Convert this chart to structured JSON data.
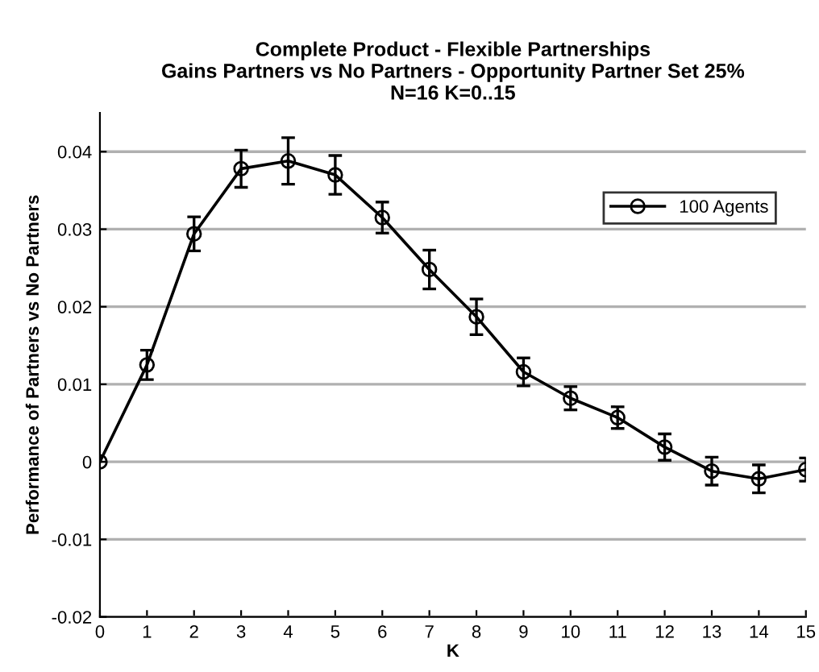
{
  "chart_data": {
    "type": "line",
    "title": "Complete Product - Flexible Partnerships\nGains Partners vs No Partners - Opportunity Partner Set 25%\nN=16 K=0..15",
    "xlabel": "K",
    "ylabel": "Performance of Partners vs No Partners",
    "x": [
      0,
      1,
      2,
      3,
      4,
      5,
      6,
      7,
      8,
      9,
      10,
      11,
      12,
      13,
      14,
      15
    ],
    "series": [
      {
        "name": "100 Agents",
        "color": "#000000",
        "values": [
          0,
          0.0125,
          0.0294,
          0.0378,
          0.0388,
          0.037,
          0.0315,
          0.0248,
          0.0187,
          0.0116,
          0.0082,
          0.0057,
          0.0019,
          -0.0012,
          -0.0022,
          -0.001
        ],
        "errors": [
          null,
          0.0019,
          0.0022,
          0.0024,
          0.003,
          0.0025,
          0.002,
          0.0025,
          0.0023,
          0.0018,
          0.0015,
          0.0014,
          0.0017,
          0.0018,
          0.0018,
          0.0015
        ]
      }
    ],
    "xlim": [
      0,
      15
    ],
    "xticks": [
      0,
      1,
      2,
      3,
      4,
      5,
      6,
      7,
      8,
      9,
      10,
      11,
      12,
      13,
      14,
      15
    ],
    "ylim": [
      -0.02,
      0.045
    ],
    "yticks": [
      -0.02,
      -0.01,
      0,
      0.01,
      0.02,
      0.03,
      0.04
    ],
    "grid": "y",
    "legend": "top right",
    "marker": "circle",
    "line_style": "solid"
  }
}
